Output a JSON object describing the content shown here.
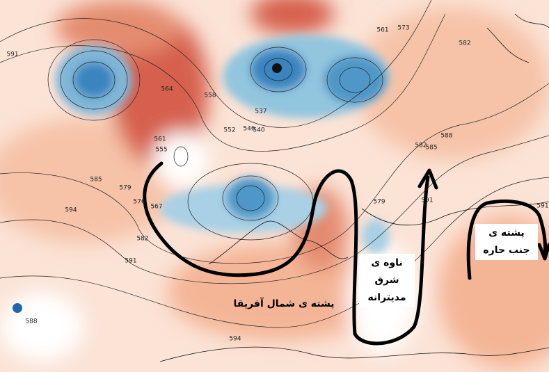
{
  "map": {
    "contour_labels": [
      "585",
      "591",
      "579",
      "576",
      "567",
      "582",
      "591",
      "594",
      "588",
      "561",
      "555",
      "558",
      "552",
      "546",
      "540",
      "537",
      "564",
      "561",
      "573",
      "582",
      "585",
      "588",
      "591",
      "579",
      "594",
      "591",
      "582"
    ],
    "annotations": [
      {
        "lines": [
          "پشته ی شمال آفریقا"
        ]
      },
      {
        "lines": [
          "ناوه ی",
          "شرق",
          "مدیترانه"
        ]
      },
      {
        "lines": [
          "پشته ی",
          "جنب حاره"
        ]
      }
    ]
  }
}
